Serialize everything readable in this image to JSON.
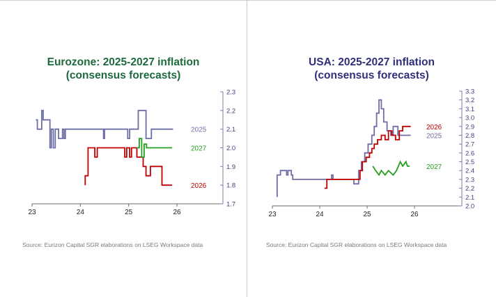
{
  "colors": {
    "title_left": "#1e6a3c",
    "title_right": "#2f2f7a",
    "axis": "#7b7ba8",
    "tick_text": "#404080",
    "s2025": "#6e6ea6",
    "s2026": "#c00000",
    "s2027": "#22a022"
  },
  "chart_data": [
    {
      "type": "line",
      "title": "Eurozone: 2025-2027 inflation",
      "subtitle": "(consensus forecasts)",
      "source": "Source: Eurizon Capital SGR elaborations on LSEG Workspace data",
      "x_ticks": [
        "23",
        "24",
        "25",
        "26"
      ],
      "y_ticks": [
        "1.7",
        "1.8",
        "1.9",
        "2.0",
        "2.1",
        "2.2",
        "2.3"
      ],
      "xlim": [
        23,
        26
      ],
      "ylim": [
        1.7,
        2.3
      ],
      "y_axis_side": "right",
      "series": [
        {
          "name": "2025",
          "color_key": "s2025",
          "label_pos": [
            25.27,
            2.1
          ],
          "x": [
            23.08,
            23.11,
            23.11,
            23.2,
            23.2,
            23.23,
            23.23,
            23.37,
            23.37,
            23.4,
            23.4,
            23.44,
            23.44,
            23.48,
            23.48,
            23.55,
            23.55,
            23.63,
            23.63,
            23.66,
            23.66,
            23.69,
            23.69,
            24.48,
            24.48,
            24.5,
            24.5,
            24.98,
            24.98,
            25.02,
            25.02,
            25.2,
            25.2,
            25.36,
            25.36,
            25.47,
            25.47,
            25.53,
            25.53,
            25.92
          ],
          "y": [
            2.15,
            2.15,
            2.1,
            2.1,
            2.2,
            2.2,
            2.15,
            2.15,
            2.0,
            2.0,
            2.1,
            2.1,
            2.0,
            2.0,
            2.1,
            2.1,
            2.05,
            2.05,
            2.1,
            2.1,
            2.05,
            2.05,
            2.1,
            2.1,
            2.05,
            2.05,
            2.1,
            2.1,
            2.05,
            2.05,
            2.1,
            2.1,
            2.2,
            2.2,
            2.05,
            2.05,
            2.1,
            2.1,
            2.1,
            2.1
          ]
        },
        {
          "name": "2026",
          "color_key": "s2026",
          "label_pos": [
            25.27,
            1.8
          ],
          "x": [
            24.1,
            24.1,
            24.16,
            24.16,
            24.3,
            24.3,
            24.35,
            24.35,
            24.92,
            24.92,
            24.96,
            24.96,
            25.02,
            25.02,
            25.06,
            25.06,
            25.11,
            25.11,
            25.17,
            25.17,
            25.3,
            25.3,
            25.36,
            25.36,
            25.45,
            25.45,
            25.5,
            25.5,
            25.69,
            25.69,
            25.72,
            25.72,
            25.9
          ],
          "y": [
            1.8,
            1.85,
            1.85,
            2.0,
            2.0,
            1.95,
            1.95,
            2.0,
            2.0,
            1.95,
            1.95,
            2.0,
            2.0,
            1.95,
            1.95,
            2.0,
            2.0,
            2.0,
            2.0,
            1.95,
            1.95,
            1.9,
            1.9,
            1.85,
            1.85,
            1.9,
            1.9,
            1.9,
            1.9,
            1.8,
            1.8,
            1.8,
            1.8
          ]
        },
        {
          "name": "2027",
          "color_key": "s2027",
          "label_pos": [
            25.27,
            2.0
          ],
          "x": [
            25.16,
            25.16,
            25.22,
            25.22,
            25.27,
            25.27,
            25.32,
            25.32,
            25.37,
            25.37,
            25.9
          ],
          "y": [
            2.0,
            2.0,
            2.0,
            2.05,
            2.05,
            1.95,
            1.95,
            2.02,
            2.02,
            2.0,
            2.0
          ]
        }
      ]
    },
    {
      "type": "line",
      "title": "USA: 2025-2027 inflation",
      "subtitle": "(consensus forecasts)",
      "source": "Source: Eurizon Capital SGR elaborations on LSEG Workspace data",
      "x_ticks": [
        "23",
        "24",
        "25",
        "26"
      ],
      "y_ticks": [
        "2.0",
        "2.1",
        "2.2",
        "2.3",
        "2.4",
        "2.5",
        "2.6",
        "2.7",
        "2.8",
        "2.9",
        "3.0",
        "3.1",
        "3.2",
        "3.3"
      ],
      "xlim": [
        23,
        26
      ],
      "ylim": [
        2.0,
        3.3
      ],
      "y_axis_side": "right",
      "series": [
        {
          "name": "2025",
          "color_key": "s2025",
          "label_pos": [
            25.27,
            2.8
          ],
          "x": [
            23.1,
            23.1,
            23.17,
            23.17,
            23.3,
            23.3,
            23.33,
            23.33,
            23.4,
            23.4,
            23.43,
            23.43,
            23.48,
            23.48,
            23.87,
            23.87,
            24.25,
            24.25,
            24.28,
            24.28,
            24.72,
            24.72,
            24.82,
            24.82,
            24.88,
            24.88,
            24.95,
            24.95,
            25.02,
            25.02,
            25.1,
            25.1,
            25.15,
            25.15,
            25.2,
            25.2,
            25.25,
            25.25,
            25.3,
            25.3,
            25.35,
            25.35,
            25.42,
            25.42,
            25.5,
            25.5,
            25.55,
            25.55,
            25.65,
            25.65,
            25.92
          ],
          "y": [
            2.1,
            2.35,
            2.35,
            2.4,
            2.4,
            2.35,
            2.35,
            2.4,
            2.4,
            2.35,
            2.35,
            2.3,
            2.3,
            2.3,
            2.3,
            2.3,
            2.3,
            2.35,
            2.35,
            2.3,
            2.3,
            2.25,
            2.25,
            2.4,
            2.4,
            2.5,
            2.5,
            2.6,
            2.6,
            2.7,
            2.7,
            2.8,
            2.8,
            2.9,
            2.9,
            3.05,
            3.05,
            3.2,
            3.2,
            3.1,
            3.1,
            2.95,
            2.95,
            2.85,
            2.85,
            2.8,
            2.8,
            2.9,
            2.9,
            2.8,
            2.8
          ]
        },
        {
          "name": "2026",
          "color_key": "s2026",
          "label_pos": [
            25.27,
            2.9
          ],
          "x": [
            24.1,
            24.1,
            24.15,
            24.15,
            24.85,
            24.85,
            24.9,
            24.9,
            24.98,
            24.98,
            25.05,
            25.05,
            25.1,
            25.1,
            25.15,
            25.15,
            25.22,
            25.22,
            25.3,
            25.3,
            25.38,
            25.38,
            25.45,
            25.45,
            25.52,
            25.52,
            25.6,
            25.6,
            25.68,
            25.68,
            25.75,
            25.75,
            25.92
          ],
          "y": [
            2.2,
            2.2,
            2.2,
            2.3,
            2.3,
            2.4,
            2.4,
            2.5,
            2.5,
            2.55,
            2.55,
            2.6,
            2.6,
            2.65,
            2.65,
            2.7,
            2.7,
            2.75,
            2.75,
            2.8,
            2.8,
            2.75,
            2.75,
            2.85,
            2.85,
            2.8,
            2.8,
            2.75,
            2.75,
            2.85,
            2.85,
            2.9,
            2.9
          ]
        },
        {
          "name": "2027",
          "color_key": "s2027",
          "label_pos": [
            25.27,
            2.45
          ],
          "x": [
            25.12,
            25.12,
            25.18,
            25.18,
            25.25,
            25.25,
            25.3,
            25.3,
            25.38,
            25.38,
            25.45,
            25.45,
            25.55,
            25.55,
            25.62,
            25.62,
            25.7,
            25.7,
            25.75,
            25.75,
            25.82,
            25.82,
            25.85,
            25.85,
            25.9
          ],
          "y": [
            2.45,
            2.45,
            2.4,
            2.4,
            2.35,
            2.35,
            2.4,
            2.4,
            2.35,
            2.35,
            2.4,
            2.4,
            2.35,
            2.35,
            2.4,
            2.4,
            2.5,
            2.5,
            2.45,
            2.45,
            2.5,
            2.5,
            2.45,
            2.45,
            2.45
          ]
        }
      ]
    }
  ]
}
